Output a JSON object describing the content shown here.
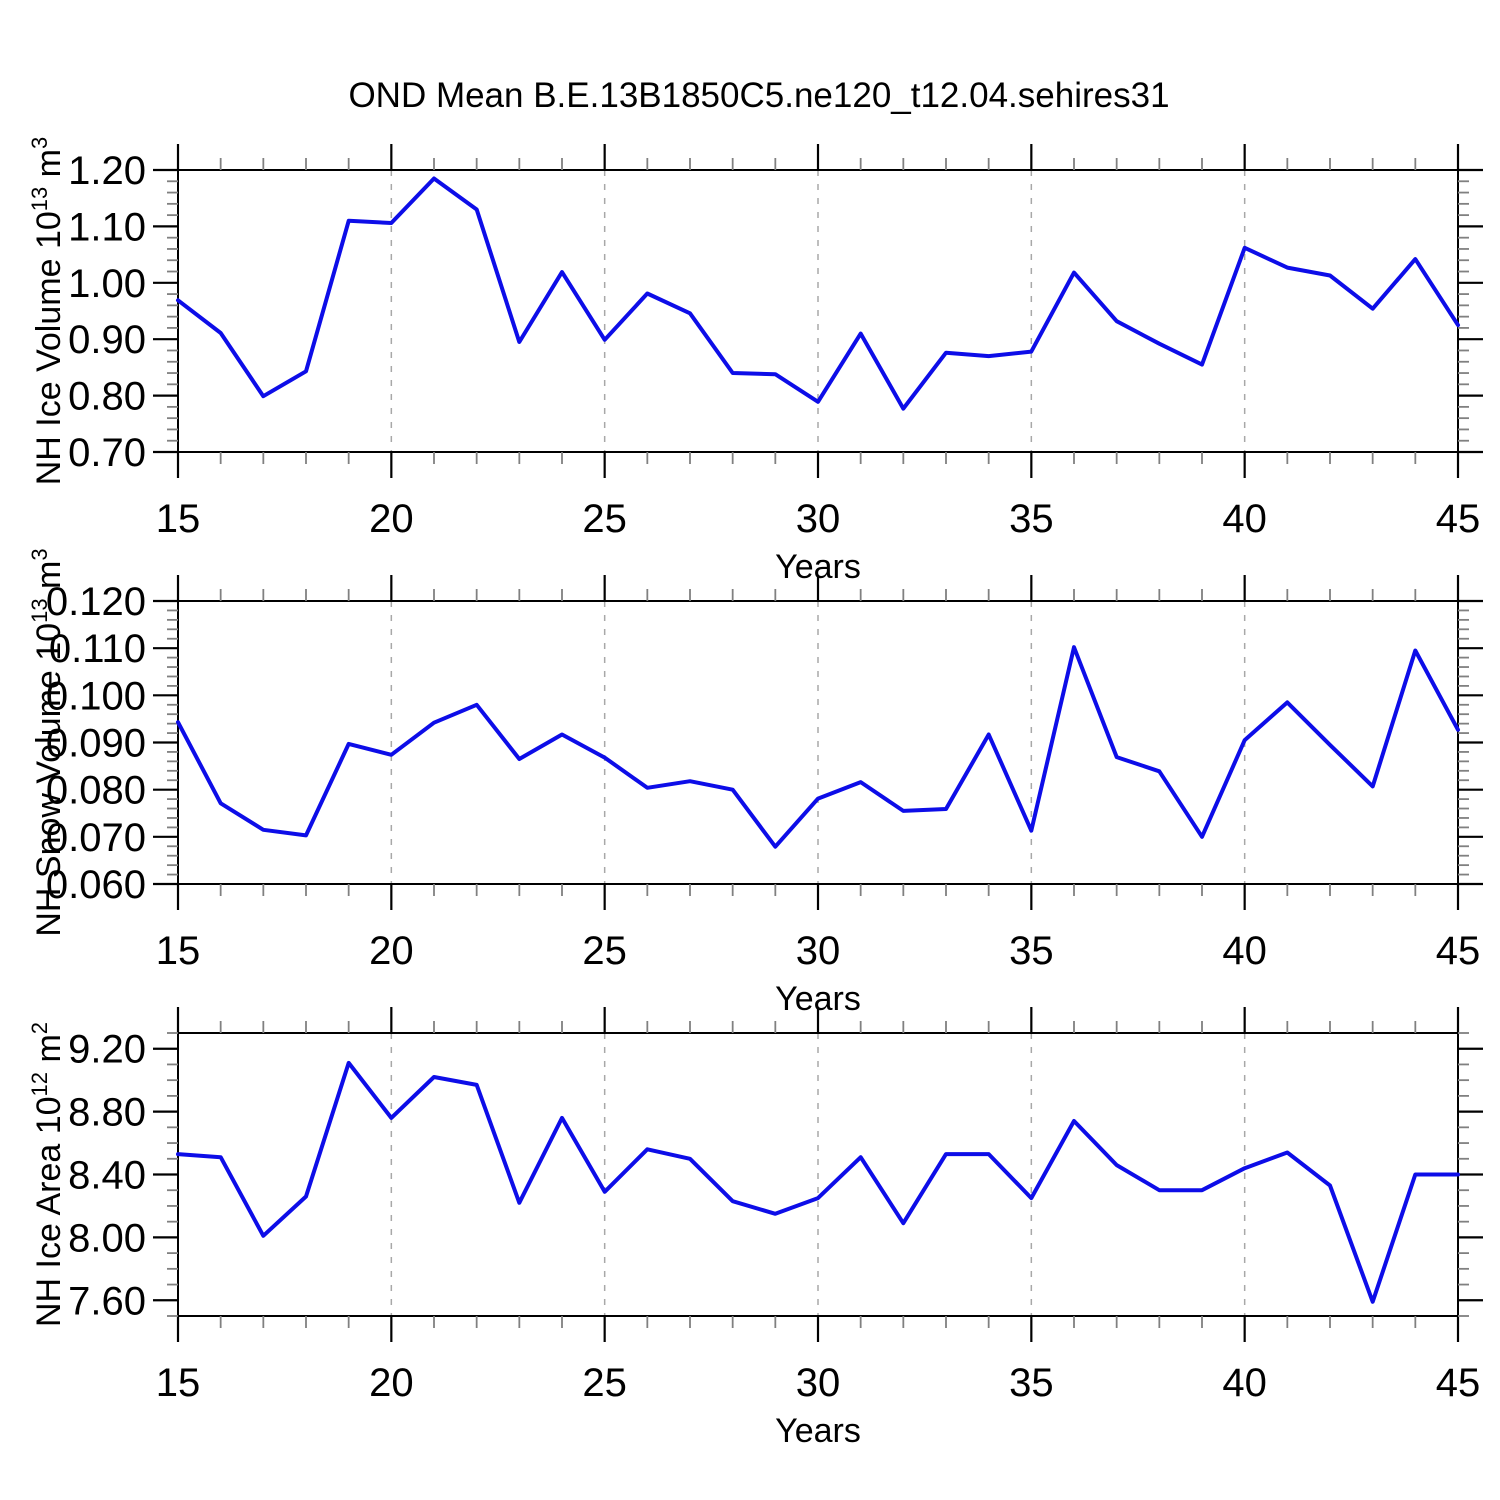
{
  "figure": {
    "title": "OND Mean B.E.13B1850C5.ne120_t12.04.sehires31",
    "background": "#ffffff",
    "line_color": "#0d0de8",
    "axis_color": "#000000",
    "minor_tick_color": "#808080",
    "grid_color": "#a8a8a8"
  },
  "chart_data": [
    {
      "type": "line",
      "title": "",
      "ylabel": "NH Ice Volume 10^13 m^3",
      "ylabel_parts": [
        {
          "t": "NH Ice Volume 10"
        },
        {
          "t": "13",
          "sup": true
        },
        {
          "t": " m"
        },
        {
          "t": "3",
          "sup": true
        }
      ],
      "xlabel": "Years",
      "x": [
        15,
        16,
        17,
        18,
        19,
        20,
        21,
        22,
        23,
        24,
        25,
        26,
        27,
        28,
        29,
        30,
        31,
        32,
        33,
        34,
        35,
        36,
        37,
        38,
        39,
        40,
        41,
        42,
        43,
        44,
        45
      ],
      "values": [
        0.969,
        0.911,
        0.799,
        0.843,
        1.11,
        1.106,
        1.185,
        1.13,
        0.895,
        1.019,
        0.899,
        0.981,
        0.946,
        0.84,
        0.838,
        0.789,
        0.91,
        0.777,
        0.876,
        0.87,
        0.878,
        1.018,
        0.932,
        0.892,
        0.855,
        1.062,
        1.027,
        1.013,
        0.954,
        1.042,
        0.925
      ],
      "xlim": [
        15,
        45
      ],
      "ylim": [
        0.7,
        1.2
      ],
      "x_major_step": 5,
      "x_minor_step": 1,
      "x_tick_values": [
        15,
        20,
        25,
        30,
        35,
        40,
        45
      ],
      "x_tick_labels": [
        "15",
        "20",
        "25",
        "30",
        "35",
        "40",
        "45"
      ],
      "y_tick_values": [
        0.7,
        0.8,
        0.9,
        1.0,
        1.1,
        1.2
      ],
      "y_tick_labels": [
        "0.70",
        "0.80",
        "0.90",
        "1.00",
        "1.10",
        "1.20"
      ],
      "y_minor_step": 0.02,
      "grid_x": [
        20,
        25,
        30,
        35,
        40
      ],
      "grid_style": "dashed",
      "legend": "none"
    },
    {
      "type": "line",
      "title": "",
      "ylabel": "NH Snow Volume 10^13 m^3",
      "ylabel_parts": [
        {
          "t": "NH Snow Volume 10"
        },
        {
          "t": "13",
          "sup": true
        },
        {
          "t": " m"
        },
        {
          "t": "3",
          "sup": true
        }
      ],
      "xlabel": "Years",
      "x": [
        15,
        16,
        17,
        18,
        19,
        20,
        21,
        22,
        23,
        24,
        25,
        26,
        27,
        28,
        29,
        30,
        31,
        32,
        33,
        34,
        35,
        36,
        37,
        38,
        39,
        40,
        41,
        42,
        43,
        44,
        45
      ],
      "values": [
        0.0943,
        0.0771,
        0.0715,
        0.0703,
        0.0897,
        0.0874,
        0.0942,
        0.098,
        0.0865,
        0.0917,
        0.0868,
        0.0804,
        0.0818,
        0.08,
        0.0679,
        0.0781,
        0.0816,
        0.0755,
        0.0759,
        0.0917,
        0.0713,
        0.1102,
        0.0869,
        0.0839,
        0.07,
        0.0905,
        0.0985,
        0.0895,
        0.0807,
        0.1095,
        0.0927
      ],
      "xlim": [
        15,
        45
      ],
      "ylim": [
        0.06,
        0.12
      ],
      "x_major_step": 5,
      "x_minor_step": 1,
      "x_tick_values": [
        15,
        20,
        25,
        30,
        35,
        40,
        45
      ],
      "x_tick_labels": [
        "15",
        "20",
        "25",
        "30",
        "35",
        "40",
        "45"
      ],
      "y_tick_values": [
        0.06,
        0.07,
        0.08,
        0.09,
        0.1,
        0.11,
        0.12
      ],
      "y_tick_labels": [
        "0.060",
        "0.070",
        "0.080",
        "0.090",
        "0.100",
        "0.110",
        "0.120"
      ],
      "y_minor_step": 0.002,
      "grid_x": [
        20,
        25,
        30,
        35,
        40
      ],
      "grid_style": "dashed",
      "legend": "none"
    },
    {
      "type": "line",
      "title": "",
      "ylabel": "NH Ice Area 10^12 m^2",
      "ylabel_parts": [
        {
          "t": "NH Ice Area 10"
        },
        {
          "t": "12",
          "sup": true
        },
        {
          "t": " m"
        },
        {
          "t": "2",
          "sup": true
        }
      ],
      "xlabel": "Years",
      "x": [
        15,
        16,
        17,
        18,
        19,
        20,
        21,
        22,
        23,
        24,
        25,
        26,
        27,
        28,
        29,
        30,
        31,
        32,
        33,
        34,
        35,
        36,
        37,
        38,
        39,
        40,
        41,
        42,
        43,
        44,
        45
      ],
      "values": [
        8.53,
        8.51,
        8.01,
        8.26,
        9.11,
        8.76,
        9.02,
        8.97,
        8.22,
        8.76,
        8.29,
        8.56,
        8.5,
        8.23,
        8.15,
        8.25,
        8.51,
        8.09,
        8.53,
        8.53,
        8.25,
        8.74,
        8.46,
        8.3,
        8.3,
        8.44,
        8.54,
        8.33,
        7.59,
        8.4,
        8.4
      ],
      "xlim": [
        15,
        45
      ],
      "ylim": [
        7.5,
        9.3
      ],
      "x_major_step": 5,
      "x_minor_step": 1,
      "x_tick_values": [
        15,
        20,
        25,
        30,
        35,
        40,
        45
      ],
      "x_tick_labels": [
        "15",
        "20",
        "25",
        "30",
        "35",
        "40",
        "45"
      ],
      "y_tick_values": [
        7.6,
        8.0,
        8.4,
        8.8,
        9.2
      ],
      "y_tick_labels": [
        "7.60",
        "8.00",
        "8.40",
        "8.80",
        "9.20"
      ],
      "y_minor_step": 0.1,
      "grid_x": [
        20,
        25,
        30,
        35,
        40
      ],
      "grid_style": "dashed",
      "legend": "none"
    }
  ]
}
